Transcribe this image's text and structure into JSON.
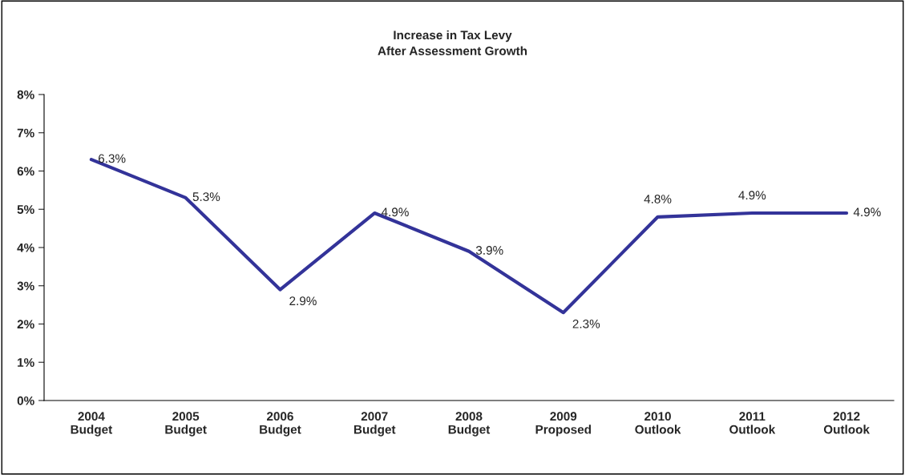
{
  "chart_data": {
    "type": "line",
    "title": "Increase in Tax Levy\nAfter Assessment Growth",
    "categories": [
      "2004\nBudget",
      "2005\nBudget",
      "2006\nBudget",
      "2007\nBudget",
      "2008\nBudget",
      "2009\nProposed",
      "2010\nOutlook",
      "2011\nOutlook",
      "2012\nOutlook"
    ],
    "series": [
      {
        "color": "#333399",
        "values": [
          6.3,
          5.3,
          2.9,
          4.9,
          3.9,
          2.3,
          4.8,
          4.9,
          4.9
        ]
      }
    ],
    "ylim": [
      0,
      8
    ],
    "yticks": [
      {
        "value": 0,
        "label": "0%"
      },
      {
        "value": 1,
        "label": "1%"
      },
      {
        "value": 2,
        "label": "2%"
      },
      {
        "value": 3,
        "label": "3%"
      },
      {
        "value": 4,
        "label": "4%"
      },
      {
        "value": 5,
        "label": "5%"
      },
      {
        "value": 6,
        "label": "6%"
      },
      {
        "value": 7,
        "label": "7%"
      },
      {
        "value": 8,
        "label": "8%"
      }
    ],
    "value_labels": [
      "6.3%",
      "5.3%",
      "2.9%",
      "4.9%",
      "3.9%",
      "2.3%",
      "4.8%",
      "4.9%",
      "4.9%"
    ],
    "grid": false,
    "marker": "none",
    "line_style": "solid"
  }
}
